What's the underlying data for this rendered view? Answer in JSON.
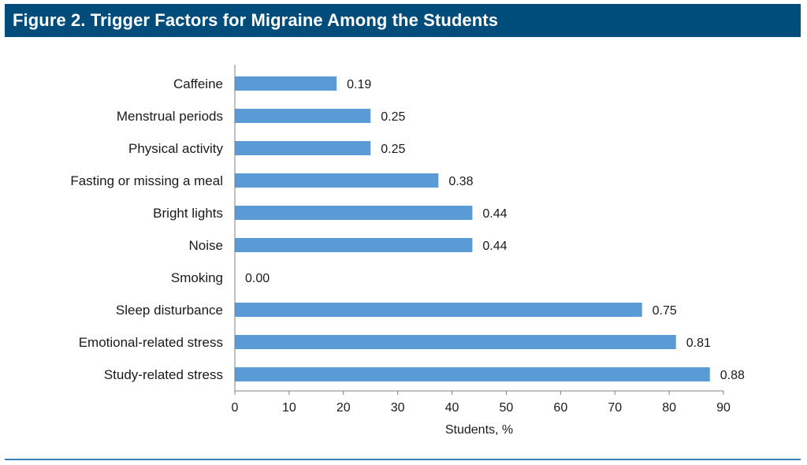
{
  "figure": {
    "title": "Figure 2. Trigger Factors for Migraine Among the Students"
  },
  "colors": {
    "title_background": "#004c7a",
    "title_text": "#ffffff",
    "bar": "#5b9bd5",
    "rule": "#3a7fb5"
  },
  "chart_data": {
    "type": "bar",
    "orientation": "horizontal",
    "title": "",
    "xlabel": "Students, %",
    "ylabel": "",
    "xlim": [
      0,
      90
    ],
    "xticks": [
      0,
      10,
      20,
      30,
      40,
      50,
      60,
      70,
      80,
      90
    ],
    "grid": false,
    "legend": "none",
    "categories": [
      "Caffeine",
      "Menstrual periods",
      "Physical activity",
      "Fasting or missing a meal",
      "Bright lights",
      "Noise",
      "Smoking",
      "Sleep disturbance",
      "Emotional-related stress",
      "Study-related stress"
    ],
    "values": [
      18.75,
      25,
      25,
      37.5,
      43.75,
      43.75,
      0,
      75,
      81.25,
      87.5
    ],
    "data_labels": [
      "0.19",
      "0.25",
      "0.25",
      "0.38",
      "0.44",
      "0.44",
      "0.00",
      "0.75",
      "0.81",
      "0.88"
    ]
  }
}
